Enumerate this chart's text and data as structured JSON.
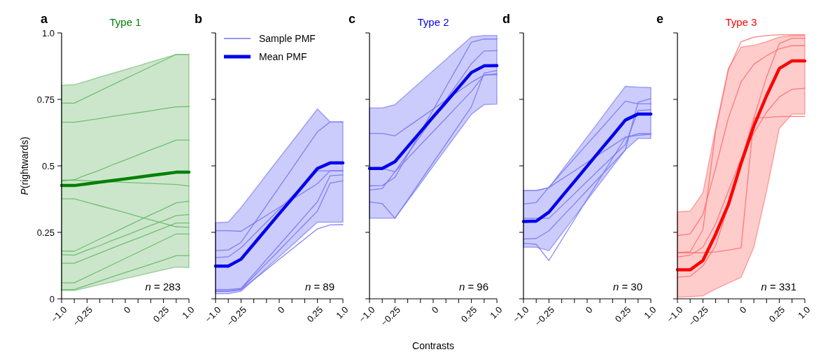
{
  "chart_data": [
    {
      "type": "line",
      "title": "Type 1",
      "ylabel": "P(rightwards)",
      "annotations": [
        "a",
        "n = 283"
      ],
      "categories": [
        "−1.0",
        null,
        "−0.25",
        null,
        null,
        "0",
        null,
        null,
        "0.25",
        null,
        "1.0"
      ],
      "ylim": [
        0,
        1
      ],
      "yticks": [
        0,
        0.25,
        0.5,
        0.75,
        {
          "value": 1,
          "label": "1.0"
        }
      ],
      "grid": false,
      "legend": false,
      "marker": "none",
      "line_style": "solid",
      "series": [
        {
          "color": "#66bb66",
          "values": [
            0.736,
            0.736,
            0.759,
            0.782,
            0.805,
            0.828,
            0.85,
            0.873,
            0.896,
            0.919,
            0.919
          ]
        },
        {
          "color": "#66bb66",
          "values": [
            0.664,
            0.664,
            0.671,
            0.678,
            0.686,
            0.693,
            0.7,
            0.707,
            0.715,
            0.722,
            0.723
          ]
        },
        {
          "color": "#66bb66",
          "values": [
            0.443,
            0.448,
            0.467,
            0.484,
            0.504,
            0.522,
            0.541,
            0.56,
            0.578,
            0.597,
            0.597
          ]
        },
        {
          "color": "#66bb66",
          "values": [
            0.446,
            0.446,
            0.444,
            0.442,
            0.44,
            0.438,
            0.436,
            0.434,
            0.432,
            0.43,
            0.424
          ]
        },
        {
          "color": "#66bb66",
          "values": [
            0.376,
            0.376,
            0.363,
            0.35,
            0.337,
            0.324,
            0.31,
            0.297,
            0.284,
            0.271,
            0.269
          ]
        },
        {
          "color": "#66bb66",
          "values": [
            0.18,
            0.179,
            0.202,
            0.225,
            0.247,
            0.27,
            0.293,
            0.316,
            0.338,
            0.361,
            0.367
          ]
        },
        {
          "color": "#66bb66",
          "values": [
            0.166,
            0.164,
            0.183,
            0.2,
            0.22,
            0.238,
            0.257,
            0.276,
            0.294,
            0.313,
            0.317
          ]
        },
        {
          "color": "#66bb66",
          "values": [
            0.134,
            0.134,
            0.153,
            0.172,
            0.191,
            0.21,
            0.228,
            0.247,
            0.266,
            0.285,
            0.285
          ]
        },
        {
          "color": "#66bb66",
          "values": [
            0.06,
            0.06,
            0.083,
            0.106,
            0.129,
            0.152,
            0.175,
            0.198,
            0.221,
            0.244,
            0.244
          ]
        },
        {
          "color": "#66bb66",
          "values": [
            0.035,
            0.035,
            0.051,
            0.067,
            0.083,
            0.099,
            0.114,
            0.13,
            0.146,
            0.162,
            0.162
          ]
        },
        {
          "color": "#008000",
          "values": [
            0.426,
            0.426,
            0.432,
            0.439,
            0.445,
            0.451,
            0.457,
            0.464,
            0.47,
            0.476,
            0.476
          ],
          "lower": [
            0.031,
            0.031,
            0.042,
            0.053,
            0.064,
            0.076,
            0.087,
            0.098,
            0.109,
            0.12,
            0.117
          ],
          "upper": [
            0.803,
            0.805,
            0.819,
            0.834,
            0.848,
            0.862,
            0.876,
            0.891,
            0.905,
            0.919,
            0.919
          ]
        }
      ]
    },
    {
      "type": "line",
      "annotations": [
        "b",
        "n = 89"
      ],
      "categories": [
        "−1.0",
        null,
        "−0.25",
        null,
        null,
        "0",
        null,
        null,
        "0.25",
        null,
        "1.0"
      ],
      "ylim": [
        0,
        1
      ],
      "yticks": [
        0,
        0.25,
        0.5,
        0.75,
        1
      ],
      "tick_labels": "x",
      "grid": false,
      "legend": "top left",
      "marker": "none",
      "line_style": "solid",
      "series": [
        {
          "name": "Sample PMF",
          "color": "#7777f2",
          "values": [
            0.256,
            0.256,
            0.254,
            0.284,
            0.314,
            0.344,
            0.373,
            0.403,
            0.433,
            0.482,
            0.482
          ]
        },
        {
          "color": "#7777f2",
          "values": [
            0.181,
            0.184,
            0.212,
            0.281,
            0.351,
            0.42,
            0.489,
            0.559,
            0.628,
            0.665,
            0.665
          ]
        },
        {
          "color": "#7777f2",
          "values": [
            0.155,
            0.158,
            0.192,
            0.24,
            0.288,
            0.337,
            0.385,
            0.433,
            0.481,
            0.481,
            0.481
          ]
        },
        {
          "color": "#7777f2",
          "values": [
            0.035,
            0.035,
            0.039,
            0.093,
            0.148,
            0.202,
            0.256,
            0.311,
            0.365,
            0.463,
            0.466
          ]
        },
        {
          "color": "#7777f2",
          "values": [
            0.028,
            0.028,
            0.034,
            0.072,
            0.11,
            0.149,
            0.187,
            0.225,
            0.263,
            0.278,
            0.279
          ]
        },
        {
          "color": "#7777f2",
          "values": [
            0.03,
            0.03,
            0.036,
            0.085,
            0.134,
            0.183,
            0.232,
            0.281,
            0.33,
            0.435,
            0.444
          ]
        },
        {
          "name": "Mean PMF",
          "color": "#0000ee",
          "values": [
            0.123,
            0.123,
            0.149,
            0.206,
            0.263,
            0.32,
            0.376,
            0.433,
            0.49,
            0.511,
            0.511
          ],
          "lower": [
            0.019,
            0.019,
            0.028,
            0.071,
            0.115,
            0.158,
            0.201,
            0.245,
            0.288,
            0.288,
            0.288
          ],
          "upper": [
            0.286,
            0.289,
            0.343,
            0.405,
            0.467,
            0.529,
            0.59,
            0.652,
            0.714,
            0.666,
            0.666
          ]
        }
      ]
    },
    {
      "type": "line",
      "title": "Type 2",
      "xlabel": "Contrasts",
      "annotations": [
        "c",
        "n = 96"
      ],
      "categories": [
        "−1.0",
        null,
        "−0.25",
        null,
        null,
        "0",
        null,
        null,
        "0.25",
        null,
        "1.0"
      ],
      "ylim": [
        0,
        1
      ],
      "yticks": [
        0,
        0.25,
        0.5,
        0.75,
        1
      ],
      "tick_labels": "x",
      "grid": false,
      "legend": false,
      "marker": "none",
      "line_style": "solid",
      "series": [
        {
          "color": "#7777f2",
          "values": [
            0.622,
            0.622,
            0.613,
            0.647,
            0.68,
            0.714,
            0.747,
            0.781,
            0.814,
            0.841,
            0.843
          ]
        },
        {
          "color": "#7777f2",
          "values": [
            0.425,
            0.426,
            0.457,
            0.542,
            0.626,
            0.711,
            0.796,
            0.88,
            0.965,
            0.977,
            0.977
          ]
        },
        {
          "color": "#7777f2",
          "values": [
            0.409,
            0.415,
            0.478,
            0.546,
            0.613,
            0.681,
            0.749,
            0.816,
            0.884,
            0.932,
            0.933
          ]
        },
        {
          "color": "#7777f2",
          "values": [
            0.364,
            0.358,
            0.303,
            0.373,
            0.443,
            0.513,
            0.582,
            0.652,
            0.722,
            0.849,
            0.858
          ]
        },
        {
          "color": "#7777f2",
          "values": [
            0.49,
            0.49,
            0.478,
            0.528,
            0.579,
            0.629,
            0.679,
            0.73,
            0.78,
            0.842,
            0.846
          ]
        },
        {
          "color": "#0000ee",
          "values": [
            0.49,
            0.49,
            0.516,
            0.572,
            0.628,
            0.684,
            0.739,
            0.795,
            0.851,
            0.876,
            0.877
          ],
          "lower": [
            0.303,
            0.303,
            0.303,
            0.368,
            0.433,
            0.499,
            0.564,
            0.629,
            0.694,
            0.73,
            0.732
          ],
          "upper": [
            0.718,
            0.718,
            0.73,
            0.773,
            0.815,
            0.858,
            0.9,
            0.943,
            0.985,
            0.99,
            0.99
          ]
        }
      ]
    },
    {
      "type": "line",
      "annotations": [
        "d",
        "n = 30"
      ],
      "categories": [
        "−1.0",
        null,
        "−0.25",
        null,
        null,
        "0",
        null,
        null,
        "0.25",
        null,
        "1.0"
      ],
      "ylim": [
        0,
        1
      ],
      "yticks": [
        0,
        0.25,
        0.5,
        0.75,
        1
      ],
      "tick_labels": "x",
      "grid": false,
      "legend": false,
      "marker": "none",
      "line_style": "solid",
      "series": [
        {
          "color": "#7777f2",
          "values": [
            0.407,
            0.407,
            0.418,
            0.45,
            0.481,
            0.513,
            0.545,
            0.576,
            0.608,
            0.615,
            0.619
          ]
        },
        {
          "color": "#7777f2",
          "values": [
            0.356,
            0.362,
            0.42,
            0.474,
            0.528,
            0.582,
            0.635,
            0.689,
            0.743,
            0.733,
            0.733
          ]
        },
        {
          "color": "#7777f2",
          "values": [
            0.303,
            0.303,
            0.303,
            0.349,
            0.395,
            0.442,
            0.488,
            0.534,
            0.58,
            0.708,
            0.711
          ]
        },
        {
          "color": "#7777f2",
          "values": [
            0.225,
            0.227,
            0.256,
            0.307,
            0.357,
            0.408,
            0.459,
            0.509,
            0.56,
            0.739,
            0.753
          ]
        },
        {
          "color": "#7777f2",
          "values": [
            0.209,
            0.205,
            0.144,
            0.221,
            0.298,
            0.375,
            0.452,
            0.529,
            0.606,
            0.621,
            0.621
          ]
        },
        {
          "color": "#0000ee",
          "values": [
            0.291,
            0.292,
            0.326,
            0.384,
            0.441,
            0.499,
            0.557,
            0.614,
            0.672,
            0.695,
            0.695
          ],
          "lower": [
            0.194,
            0.194,
            0.181,
            0.244,
            0.307,
            0.371,
            0.434,
            0.497,
            0.56,
            0.603,
            0.603
          ],
          "upper": [
            0.407,
            0.407,
            0.418,
            0.482,
            0.545,
            0.609,
            0.672,
            0.736,
            0.799,
            0.796,
            0.795
          ]
        }
      ]
    },
    {
      "type": "line",
      "title": "Type 3",
      "annotations": [
        "e",
        "n = 331"
      ],
      "categories": [
        "−1.0",
        null,
        "−0.25",
        null,
        null,
        "0",
        null,
        null,
        "0.25",
        null,
        "1.0"
      ],
      "ylim": [
        0,
        1
      ],
      "yticks": [
        0,
        0.25,
        0.5,
        0.75,
        1
      ],
      "tick_labels": "x",
      "grid": false,
      "legend": false,
      "marker": "none",
      "line_style": "solid",
      "series": [
        {
          "color": "#ff7070",
          "values": [
            0.173,
            0.177,
            0.26,
            0.632,
            0.862,
            0.967,
            0.984,
            0.99,
            0.993,
            0.993,
            0.993
          ]
        },
        {
          "color": "#ff7070",
          "values": [
            0.238,
            0.244,
            0.317,
            0.492,
            0.68,
            0.816,
            0.882,
            0.914,
            0.94,
            0.952,
            0.952
          ]
        },
        {
          "color": "#ff7070",
          "values": [
            0.157,
            0.164,
            0.194,
            0.282,
            0.405,
            0.527,
            0.623,
            0.702,
            0.759,
            0.788,
            0.792
          ]
        },
        {
          "color": "#ff7070",
          "values": [
            0.173,
            0.173,
            0.173,
            0.176,
            0.183,
            0.192,
            0.68,
            0.682,
            0.685,
            0.686,
            0.686
          ]
        },
        {
          "color": "#ff7070",
          "values": [
            0.081,
            0.085,
            0.124,
            0.2,
            0.35,
            0.52,
            0.68,
            0.834,
            0.96,
            0.98,
            0.98
          ]
        },
        {
          "color": "#ff0000",
          "values": [
            0.109,
            0.109,
            0.144,
            0.243,
            0.354,
            0.51,
            0.65,
            0.764,
            0.866,
            0.895,
            0.895
          ],
          "lower": [
            0.006,
            0.008,
            0.011,
            0.037,
            0.059,
            0.081,
            0.194,
            0.405,
            0.641,
            0.695,
            0.695
          ],
          "upper": [
            0.327,
            0.33,
            0.398,
            0.641,
            0.867,
            0.947,
            0.953,
            0.967,
            0.984,
            0.99,
            0.99
          ]
        }
      ]
    }
  ]
}
